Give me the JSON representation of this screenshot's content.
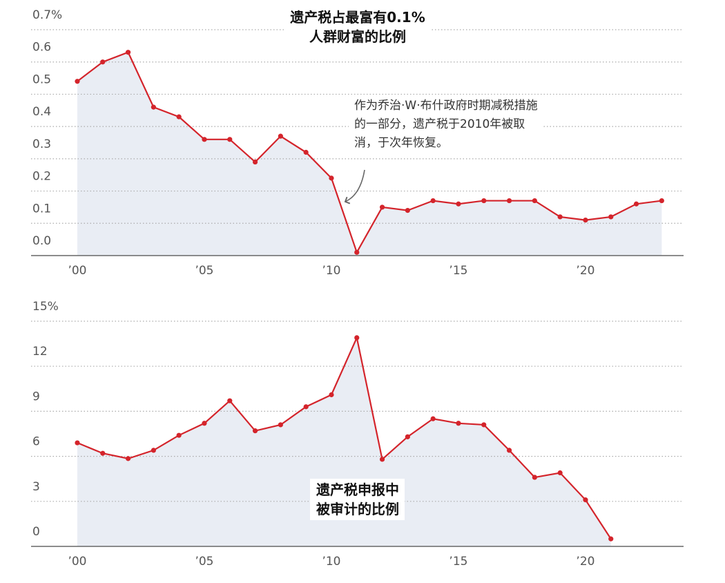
{
  "chart_data": [
    {
      "type": "area-line",
      "title": [
        "遗产税占最富有0.1%",
        "人群财富的比例"
      ],
      "annotation": [
        "作为乔治·W·布什政府时期减税措施",
        "的一部分，遗产税于2010年被取",
        "消，于次年恢复。"
      ],
      "x": [
        2000,
        2001,
        2002,
        2003,
        2004,
        2005,
        2006,
        2007,
        2008,
        2009,
        2010,
        2011,
        2012,
        2013,
        2014,
        2015,
        2016,
        2017,
        2018,
        2019,
        2020,
        2021,
        2022,
        2023
      ],
      "values": [
        0.54,
        0.6,
        0.63,
        0.46,
        0.43,
        0.36,
        0.36,
        0.29,
        0.37,
        0.32,
        0.24,
        0.01,
        0.15,
        0.14,
        0.17,
        0.16,
        0.17,
        0.17,
        0.17,
        0.12,
        0.11,
        0.12,
        0.16,
        0.17
      ],
      "color": "#d4242b",
      "fill": "#e9edf4",
      "xlim": [
        1998.18,
        2023.86
      ],
      "xticks": [
        {
          "value": 2000,
          "label": "’00"
        },
        {
          "value": 2005,
          "label": "’05"
        },
        {
          "value": 2010,
          "label": "’10"
        },
        {
          "value": 2015,
          "label": "’15"
        },
        {
          "value": 2020,
          "label": "’20"
        }
      ],
      "ylim": [
        0,
        0.7
      ],
      "yticks": [
        {
          "value": 0,
          "label": "0.0"
        },
        0.1,
        0.2,
        0.3,
        0.4,
        0.5,
        0.6,
        {
          "value": 0.7,
          "label": "0.7%"
        }
      ],
      "grid": true
    },
    {
      "type": "area-line",
      "title": [
        "遗产税申报中",
        "被审计的比例"
      ],
      "x": [
        2000,
        2001,
        2002,
        2003,
        2004,
        2005,
        2006,
        2007,
        2008,
        2009,
        2010,
        2011,
        2012,
        2013,
        2014,
        2015,
        2016,
        2017,
        2018,
        2019,
        2020,
        2021
      ],
      "values": [
        6.9,
        6.2,
        5.85,
        6.4,
        7.4,
        8.2,
        9.7,
        7.7,
        8.1,
        9.3,
        10.1,
        13.9,
        5.8,
        7.3,
        8.5,
        8.2,
        8.1,
        6.4,
        4.6,
        4.9,
        3.1,
        0.5
      ],
      "color": "#d4242b",
      "fill": "#e9edf4",
      "xlim": [
        1998.18,
        2023.86
      ],
      "xticks": [
        {
          "value": 2000,
          "label": "’00"
        },
        {
          "value": 2005,
          "label": "’05"
        },
        {
          "value": 2010,
          "label": "’10"
        },
        {
          "value": 2015,
          "label": "’15"
        },
        {
          "value": 2020,
          "label": "’20"
        }
      ],
      "ylim": [
        0,
        15
      ],
      "yticks": [
        0,
        3,
        6,
        9,
        12,
        {
          "value": 15,
          "label": "15%"
        }
      ],
      "grid": true
    }
  ]
}
